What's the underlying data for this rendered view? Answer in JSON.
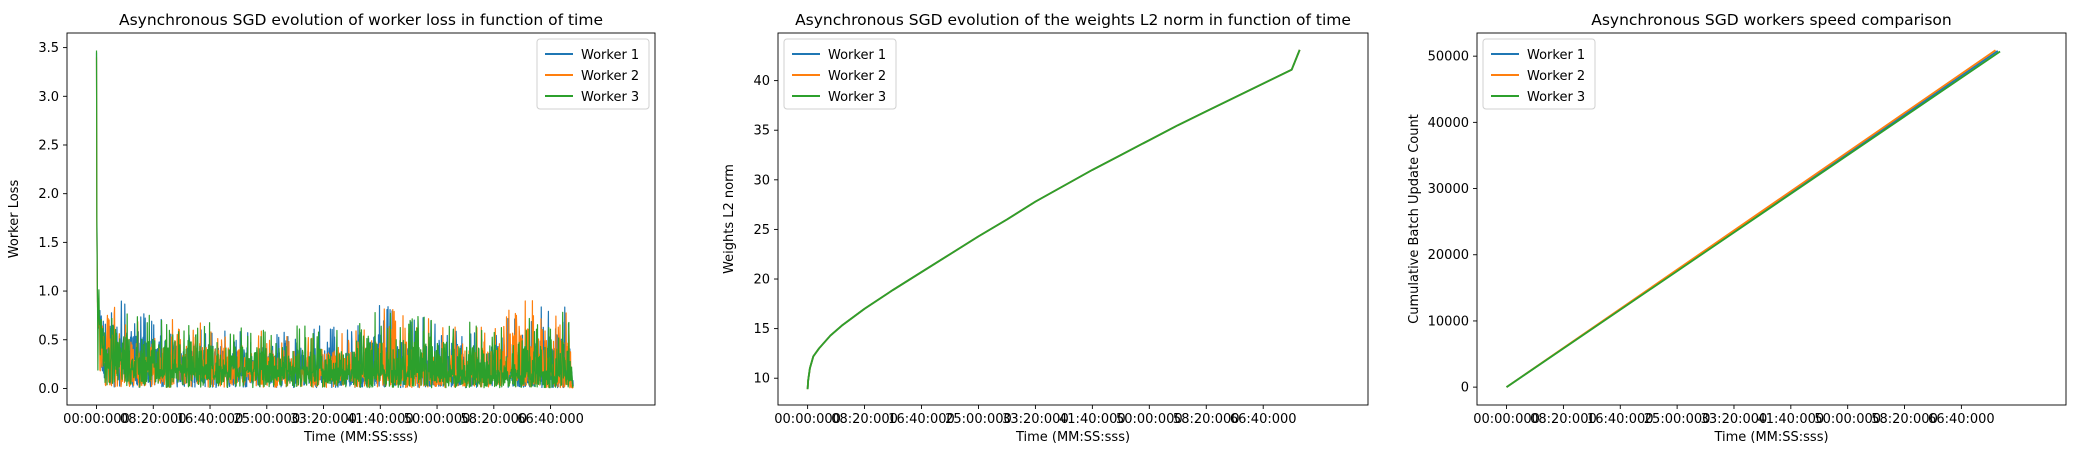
{
  "colors": {
    "worker1": "#1f77b4",
    "worker2": "#ff7f0e",
    "worker3": "#2ca02c"
  },
  "chart_data": [
    {
      "type": "line",
      "title": "Asynchronous SGD evolution of worker loss in function of time",
      "xlabel": "Time (MM:SS:sss)",
      "ylabel": "Worker Loss",
      "x_unit": "seconds",
      "xlim": [
        -260,
        4920
      ],
      "ylim": [
        -0.17,
        3.65
      ],
      "x_ticks": [
        0,
        500,
        1000,
        1500,
        2000,
        2500,
        3000,
        3500,
        4000
      ],
      "x_tick_labels": [
        "00:00:000",
        "08:20:000",
        "16:40:000",
        "25:00:000",
        "33:20:000",
        "41:40:000",
        "50:00:000",
        "58:20:000",
        "66:40:000"
      ],
      "y_ticks": [
        0.0,
        0.5,
        1.0,
        1.5,
        2.0,
        2.5,
        3.0,
        3.5
      ],
      "y_tick_labels": [
        "0.0",
        "0.5",
        "1.0",
        "1.5",
        "2.0",
        "2.5",
        "3.0",
        "3.5"
      ],
      "legend": "top-right",
      "grid": false,
      "series": [
        {
          "name": "Worker 1",
          "x": [
            0,
            3,
            8,
            20,
            40,
            80,
            150,
            300,
            500,
            750,
            1000,
            1250,
            1500,
            1750,
            2000,
            2250,
            2500,
            2750,
            3000,
            3250,
            3500,
            3750,
            4000,
            4150,
            4200
          ],
          "y": [
            3.45,
            1.8,
            0.9,
            0.7,
            0.5,
            0.35,
            0.3,
            0.25,
            0.22,
            0.2,
            0.2,
            0.19,
            0.18,
            0.18,
            0.17,
            0.17,
            0.17,
            0.16,
            0.16,
            0.16,
            0.15,
            0.15,
            0.15,
            0.16,
            0.02
          ],
          "y_max": [
            3.45,
            1.8,
            1.15,
            1.1,
            1.0,
            0.95,
            1.0,
            0.8,
            0.75,
            0.7,
            0.65,
            0.65,
            0.55,
            0.6,
            0.65,
            0.6,
            0.95,
            0.7,
            0.8,
            0.7,
            0.65,
            0.9,
            0.85,
            0.95,
            0.05
          ]
        },
        {
          "name": "Worker 2",
          "x": [
            0,
            3,
            8,
            20,
            40,
            80,
            150,
            300,
            500,
            750,
            1000,
            1250,
            1500,
            1750,
            2000,
            2250,
            2500,
            2750,
            3000,
            3250,
            3500,
            3750,
            4000,
            4150,
            4200
          ],
          "y": [
            3.4,
            1.7,
            0.85,
            0.65,
            0.45,
            0.33,
            0.28,
            0.24,
            0.21,
            0.2,
            0.19,
            0.18,
            0.18,
            0.17,
            0.17,
            0.17,
            0.16,
            0.16,
            0.16,
            0.15,
            0.15,
            0.15,
            0.15,
            0.17,
            0.02
          ],
          "y_max": [
            3.4,
            1.7,
            1.1,
            1.05,
            0.95,
            0.9,
            0.85,
            0.75,
            0.7,
            0.75,
            0.65,
            0.6,
            0.6,
            0.55,
            0.6,
            0.55,
            0.85,
            0.8,
            0.75,
            0.65,
            0.7,
            1.1,
            0.75,
            1.37,
            0.05
          ]
        },
        {
          "name": "Worker 3",
          "x": [
            0,
            3,
            8,
            20,
            40,
            80,
            150,
            300,
            500,
            750,
            1000,
            1250,
            1500,
            1750,
            2000,
            2250,
            2500,
            2750,
            3000,
            3250,
            3500,
            3750,
            4000,
            4150,
            4200
          ],
          "y": [
            3.47,
            1.75,
            0.88,
            0.68,
            0.48,
            0.34,
            0.29,
            0.25,
            0.22,
            0.2,
            0.2,
            0.19,
            0.18,
            0.18,
            0.17,
            0.17,
            0.16,
            0.16,
            0.16,
            0.16,
            0.15,
            0.15,
            0.15,
            0.16,
            0.02
          ],
          "y_max": [
            3.47,
            1.75,
            1.15,
            1.05,
            1.0,
            0.9,
            0.95,
            0.8,
            0.75,
            0.75,
            0.7,
            0.7,
            0.6,
            0.65,
            0.65,
            0.6,
            0.85,
            0.75,
            0.75,
            0.7,
            0.7,
            0.8,
            0.8,
            1.17,
            0.05
          ]
        }
      ]
    },
    {
      "type": "line",
      "title": "Asynchronous SGD evolution of the weights L2 norm in function of time",
      "xlabel": "Time (MM:SS:sss)",
      "ylabel": "Weights L2 norm",
      "x_unit": "seconds",
      "xlim": [
        -260,
        4920
      ],
      "ylim": [
        7.3,
        44.8
      ],
      "x_ticks": [
        0,
        500,
        1000,
        1500,
        2000,
        2500,
        3000,
        3500,
        4000
      ],
      "x_tick_labels": [
        "00:00:000",
        "08:20:000",
        "16:40:000",
        "25:00:000",
        "33:20:000",
        "41:40:000",
        "50:00:000",
        "58:20:000",
        "66:40:000"
      ],
      "y_ticks": [
        10,
        15,
        20,
        25,
        30,
        35,
        40
      ],
      "y_tick_labels": [
        "10",
        "15",
        "20",
        "25",
        "30",
        "35",
        "40"
      ],
      "legend": "top-left",
      "grid": false,
      "series": [
        {
          "name": "Worker 1",
          "x": [
            0,
            5,
            20,
            50,
            100,
            200,
            300,
            500,
            750,
            1000,
            1250,
            1500,
            1750,
            2000,
            2250,
            2500,
            2750,
            3000,
            3250,
            3500,
            3750,
            4000,
            4250,
            4320
          ],
          "y": [
            8.9,
            9.8,
            11.0,
            12.2,
            13.0,
            14.3,
            15.3,
            17.0,
            18.9,
            20.7,
            22.5,
            24.3,
            26.0,
            27.8,
            29.4,
            31.0,
            32.5,
            34.0,
            35.5,
            36.9,
            38.3,
            39.7,
            41.1,
            43.1
          ]
        },
        {
          "name": "Worker 2",
          "x": [
            0,
            5,
            20,
            50,
            100,
            200,
            300,
            500,
            750,
            1000,
            1250,
            1500,
            1750,
            2000,
            2250,
            2500,
            2750,
            3000,
            3250,
            3500,
            3750,
            4000,
            4250,
            4320
          ],
          "y": [
            8.9,
            9.8,
            11.0,
            12.2,
            13.0,
            14.3,
            15.3,
            17.0,
            18.9,
            20.7,
            22.5,
            24.3,
            26.0,
            27.8,
            29.4,
            31.0,
            32.5,
            34.0,
            35.5,
            36.9,
            38.3,
            39.7,
            41.1,
            43.1
          ]
        },
        {
          "name": "Worker 3",
          "x": [
            0,
            5,
            20,
            50,
            100,
            200,
            300,
            500,
            750,
            1000,
            1250,
            1500,
            1750,
            2000,
            2250,
            2500,
            2750,
            3000,
            3250,
            3500,
            3750,
            4000,
            4250,
            4320
          ],
          "y": [
            8.9,
            9.8,
            11.0,
            12.2,
            13.0,
            14.3,
            15.3,
            17.0,
            18.9,
            20.7,
            22.5,
            24.3,
            26.0,
            27.8,
            29.4,
            31.0,
            32.5,
            34.0,
            35.5,
            36.9,
            38.3,
            39.7,
            41.1,
            43.1
          ]
        }
      ]
    },
    {
      "type": "line",
      "title": "Asynchronous SGD workers speed comparison",
      "xlabel": "Time (MM:SS:sss)",
      "ylabel": "Cumulative Batch Update Count",
      "x_unit": "seconds",
      "xlim": [
        -260,
        4920
      ],
      "ylim": [
        -2700,
        53500
      ],
      "x_ticks": [
        0,
        500,
        1000,
        1500,
        2000,
        2500,
        3000,
        3500,
        4000
      ],
      "x_tick_labels": [
        "00:00:000",
        "08:20:000",
        "16:40:000",
        "25:00:000",
        "33:20:000",
        "41:40:000",
        "50:00:000",
        "58:20:000",
        "66:40:000"
      ],
      "y_ticks": [
        0,
        10000,
        20000,
        30000,
        40000,
        50000
      ],
      "y_tick_labels": [
        "0",
        "10000",
        "20000",
        "30000",
        "40000",
        "50000"
      ],
      "legend": "top-left",
      "grid": false,
      "series": [
        {
          "name": "Worker 1",
          "x": [
            0,
            4320
          ],
          "y": [
            0,
            50800
          ]
        },
        {
          "name": "Worker 2",
          "x": [
            0,
            4300
          ],
          "y": [
            0,
            50900
          ]
        },
        {
          "name": "Worker 3",
          "x": [
            0,
            4340
          ],
          "y": [
            0,
            50700
          ]
        }
      ]
    }
  ]
}
